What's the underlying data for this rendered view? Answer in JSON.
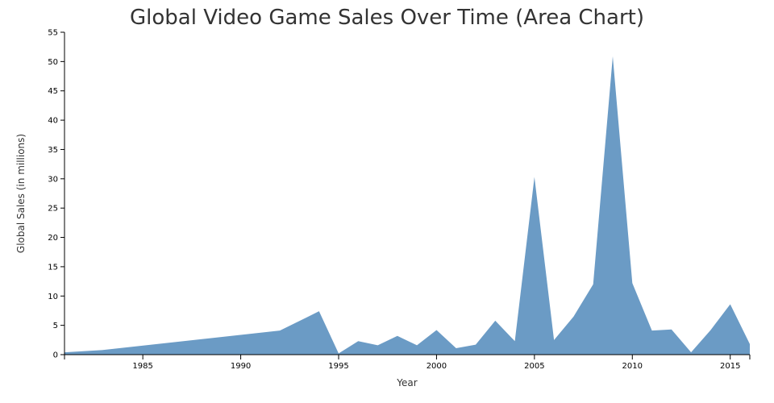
{
  "chart_data": {
    "type": "area",
    "title": "Global Video Game Sales Over Time (Area Chart)",
    "xlabel": "Year",
    "ylabel": "Global Sales (in millions)",
    "xlim": [
      1981,
      2016
    ],
    "ylim": [
      0,
      55
    ],
    "x_ticks": [
      1985,
      1990,
      1995,
      2000,
      2005,
      2010,
      2015
    ],
    "y_ticks": [
      0,
      5,
      10,
      15,
      20,
      25,
      30,
      35,
      40,
      45,
      50,
      55
    ],
    "grid": false,
    "series": [
      {
        "color": "#6b9bc5",
        "x": [
          1981,
          1983,
          1992,
          1994,
          1995,
          1996,
          1997,
          1998,
          1999,
          2000,
          2001,
          2002,
          2003,
          2004,
          2005,
          2006,
          2007,
          2008,
          2009,
          2010,
          2011,
          2012,
          2013,
          2014,
          2015,
          2016
        ],
        "values": [
          0.4,
          0.8,
          4.1,
          7.4,
          0.2,
          2.3,
          1.6,
          3.2,
          1.6,
          4.2,
          1.1,
          1.7,
          5.8,
          2.3,
          30.3,
          2.5,
          6.5,
          12.0,
          50.9,
          12.2,
          4.1,
          4.3,
          0.4,
          4.2,
          8.6,
          1.8
        ]
      }
    ]
  }
}
